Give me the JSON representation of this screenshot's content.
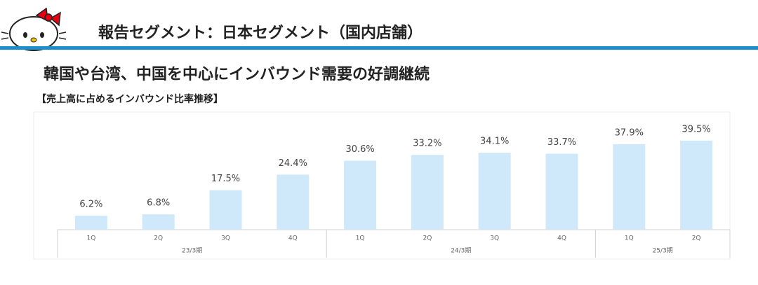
{
  "header": {
    "title": "報告セグメント：日本セグメント（国内店舗）"
  },
  "chart_data": {
    "type": "bar",
    "title": "韓国や台湾、中国を中心にインバウンド需要の好調継続",
    "subtitle": "【売上高に占めるインバウンド比率推移】",
    "color": "#cfe9fa",
    "groups": [
      {
        "name": "23/3期",
        "categories": [
          "1Q",
          "2Q",
          "3Q",
          "4Q"
        ],
        "values": [
          6.2,
          6.8,
          17.5,
          24.4
        ],
        "value_labels": [
          "6.2%",
          "6.8%",
          "17.5%",
          "24.4%"
        ]
      },
      {
        "name": "24/3期",
        "categories": [
          "1Q",
          "2Q",
          "3Q",
          "4Q"
        ],
        "values": [
          30.6,
          33.2,
          34.1,
          33.7
        ],
        "value_labels": [
          "30.6%",
          "33.2%",
          "34.1%",
          "33.7%"
        ]
      },
      {
        "name": "25/3期",
        "categories": [
          "1Q",
          "2Q"
        ],
        "values": [
          37.9,
          39.5
        ],
        "value_labels": [
          "37.9%",
          "39.5%"
        ]
      }
    ]
  }
}
